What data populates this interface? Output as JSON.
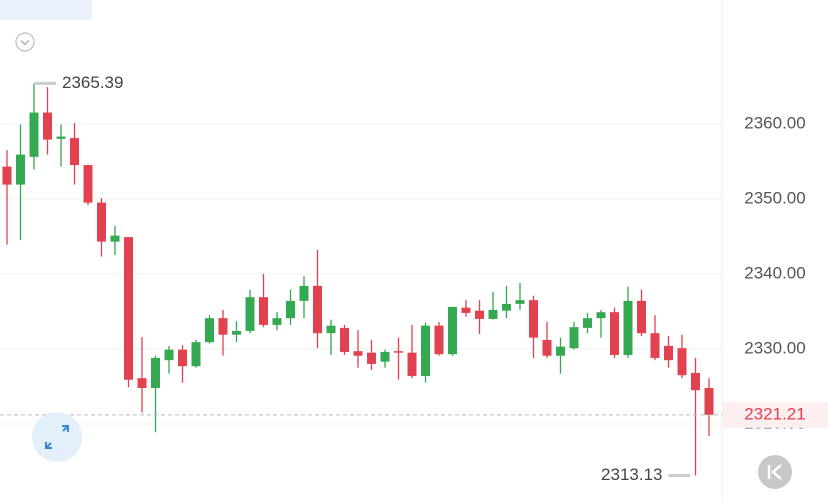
{
  "chart_data": {
    "type": "candlestick",
    "open": [
      2354.3,
      2351.9,
      2355.6,
      2361.5,
      2358.0,
      2358.1,
      2354.5,
      2349.5,
      2344.3,
      2344.9,
      2326.1,
      2324.8,
      2328.5,
      2329.9,
      2327.7,
      2330.9,
      2334.1,
      2331.9,
      2332.4,
      2336.9,
      2333.2,
      2334.1,
      2336.4,
      2338.4,
      2332.1,
      2332.8,
      2329.7,
      2329.5,
      2328.3,
      2329.7,
      2329.5,
      2326.4,
      2333.1,
      2329.3,
      2335.5,
      2335.1,
      2334.0,
      2335.1,
      2336.0,
      2336.5,
      2331.2,
      2329.1,
      2330.1,
      2332.8,
      2334.1,
      2334.9,
      2329.2,
      2336.4,
      2332.1,
      2330.4,
      2330.1,
      2326.8,
      2324.8
    ],
    "high": [
      2356.5,
      2359.9,
      2365.39,
      2364.9,
      2359.9,
      2360.1,
      2354.5,
      2350.1,
      2346.4,
      2344.9,
      2331.6,
      2329.1,
      2330.4,
      2330.5,
      2331.2,
      2334.5,
      2335.2,
      2333.7,
      2337.9,
      2340.0,
      2334.9,
      2337.9,
      2339.7,
      2343.2,
      2333.9,
      2333.2,
      2332.5,
      2331.2,
      2329.9,
      2331.5,
      2333.2,
      2333.5,
      2333.6,
      2335.6,
      2336.5,
      2336.5,
      2337.6,
      2338.4,
      2338.8,
      2337.1,
      2333.6,
      2331.5,
      2333.6,
      2334.8,
      2335.2,
      2335.5,
      2338.3,
      2337.9,
      2334.5,
      2331.7,
      2331.9,
      2328.8,
      2326.1
    ],
    "low": [
      2343.9,
      2344.5,
      2353.9,
      2355.9,
      2354.3,
      2351.9,
      2349.2,
      2342.3,
      2342.5,
      2324.9,
      2321.5,
      2318.9,
      2326.7,
      2325.5,
      2327.5,
      2330.7,
      2329.1,
      2330.9,
      2332.1,
      2332.9,
      2332.5,
      2333.2,
      2334.1,
      2330.1,
      2329.2,
      2329.2,
      2327.5,
      2327.2,
      2327.5,
      2325.9,
      2326.1,
      2325.5,
      2329.1,
      2329.1,
      2334.3,
      2332.0,
      2333.9,
      2334.1,
      2335.2,
      2328.8,
      2328.8,
      2326.7,
      2329.9,
      2332.1,
      2331.5,
      2328.8,
      2328.8,
      2331.7,
      2328.5,
      2327.5,
      2326.1,
      2313.13,
      2318.4
    ],
    "close": [
      2351.9,
      2355.9,
      2361.5,
      2357.9,
      2358.3,
      2354.5,
      2349.5,
      2344.3,
      2345.1,
      2325.9,
      2324.8,
      2328.8,
      2329.9,
      2327.7,
      2330.9,
      2334.1,
      2331.9,
      2332.4,
      2336.9,
      2333.2,
      2334.1,
      2336.4,
      2338.4,
      2332.1,
      2333.1,
      2329.6,
      2329.1,
      2328.0,
      2329.6,
      2329.5,
      2326.4,
      2333.1,
      2329.3,
      2335.6,
      2334.8,
      2334.0,
      2335.2,
      2336.0,
      2336.5,
      2331.5,
      2329.1,
      2330.3,
      2332.9,
      2334.1,
      2334.9,
      2329.2,
      2336.4,
      2332.1,
      2328.8,
      2328.5,
      2326.5,
      2324.5,
      2321.21
    ],
    "up_color": "#35a852",
    "down_color": "#e2414f",
    "ylim": [
      2311.2,
      2376.5
    ],
    "yticks": [
      {
        "value": 2320,
        "label": "2320.00"
      },
      {
        "value": 2330,
        "label": "2330.00"
      },
      {
        "value": 2340,
        "label": "2340.00"
      },
      {
        "value": 2350,
        "label": "2350.00"
      },
      {
        "value": 2360,
        "label": "2360.00"
      }
    ],
    "grid": true
  }
}
